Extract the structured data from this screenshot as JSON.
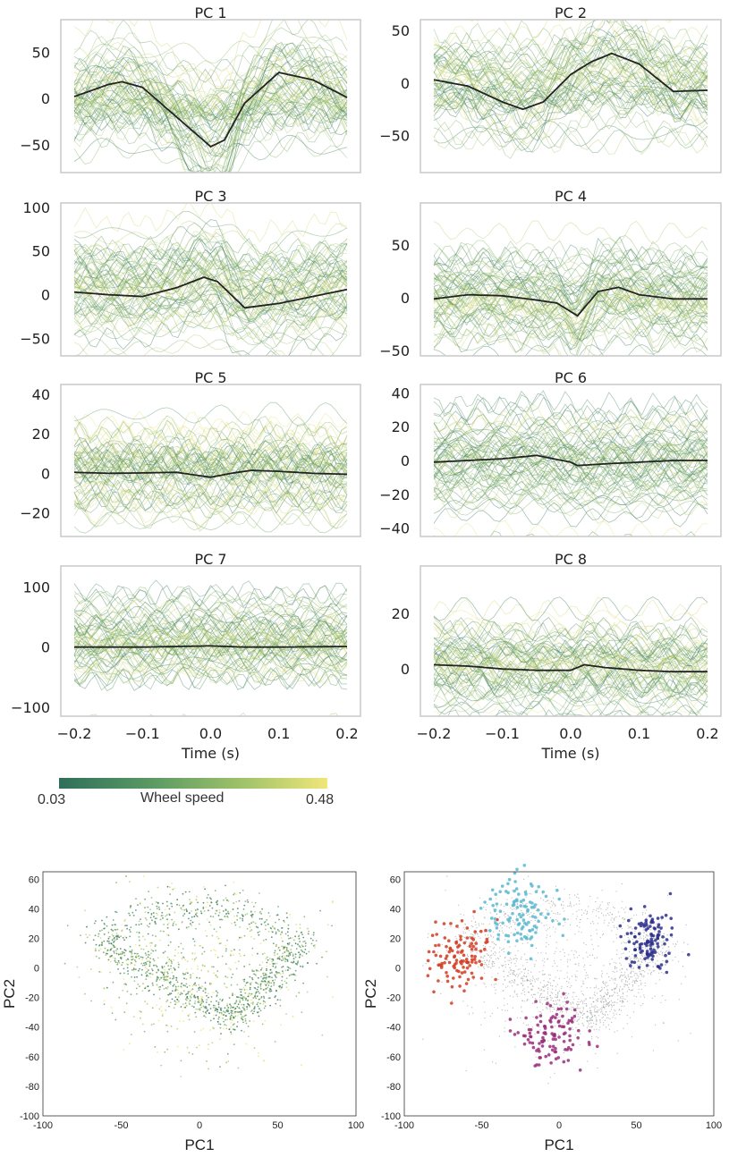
{
  "chart_data": [
    {
      "type": "line",
      "panel_group": "pc_traces",
      "x_range": [
        -0.2,
        0.2
      ],
      "xticks": [
        "-0.2",
        "-0.1",
        "0.0",
        "0.1",
        "0.2"
      ],
      "xlabel": "Time (s)",
      "colorbar": {
        "label": "Wheel speed",
        "min": "0.03",
        "max": "0.48",
        "colors": [
          "#2f6f5a",
          "#5b9a63",
          "#a3c46a",
          "#f0e67a"
        ]
      },
      "panels": [
        {
          "title": "PC 1",
          "ylim": [
            -80,
            85
          ],
          "yticks": [
            -50,
            0,
            50
          ],
          "mean": {
            "x": [
              -0.2,
              -0.15,
              -0.13,
              -0.1,
              -0.05,
              0.0,
              0.02,
              0.05,
              0.1,
              0.15,
              0.2
            ],
            "y": [
              2,
              15,
              18,
              12,
              -20,
              -52,
              -45,
              -5,
              28,
              20,
              1
            ]
          }
        },
        {
          "title": "PC 2",
          "ylim": [
            -85,
            60
          ],
          "yticks": [
            -50,
            0,
            50
          ],
          "mean": {
            "x": [
              -0.2,
              -0.15,
              -0.1,
              -0.07,
              -0.04,
              0.0,
              0.03,
              0.06,
              0.1,
              0.15,
              0.2
            ],
            "y": [
              3,
              -3,
              -18,
              -25,
              -18,
              8,
              20,
              28,
              18,
              -8,
              -7
            ]
          }
        },
        {
          "title": "PC 3",
          "ylim": [
            -70,
            105
          ],
          "yticks": [
            -50,
            0,
            50,
            100
          ],
          "mean": {
            "x": [
              -0.2,
              -0.15,
              -0.1,
              -0.05,
              -0.01,
              0.01,
              0.05,
              0.1,
              0.15,
              0.2
            ],
            "y": [
              3,
              0,
              -2,
              8,
              20,
              15,
              -15,
              -10,
              -2,
              6
            ]
          }
        },
        {
          "title": "PC 4",
          "ylim": [
            -55,
            90
          ],
          "yticks": [
            -50,
            0,
            50
          ],
          "mean": {
            "x": [
              -0.2,
              -0.15,
              -0.1,
              -0.05,
              -0.02,
              0.01,
              0.04,
              0.07,
              0.1,
              0.15,
              0.2
            ],
            "y": [
              -1,
              3,
              2,
              -2,
              -5,
              -17,
              6,
              10,
              3,
              -1,
              -1
            ]
          }
        },
        {
          "title": "PC 5",
          "ylim": [
            -32,
            45
          ],
          "yticks": [
            -20,
            0,
            20,
            40
          ],
          "mean": {
            "x": [
              -0.2,
              -0.15,
              -0.1,
              -0.05,
              0.0,
              0.03,
              0.06,
              0.1,
              0.15,
              0.2
            ],
            "y": [
              0.5,
              0,
              0.2,
              0.5,
              -2,
              0,
              1.5,
              1,
              0,
              -0.5
            ]
          }
        },
        {
          "title": "PC 6",
          "ylim": [
            -45,
            45
          ],
          "yticks": [
            -40,
            -20,
            0,
            20,
            40
          ],
          "mean": {
            "x": [
              -0.2,
              -0.15,
              -0.1,
              -0.05,
              0.0,
              0.01,
              0.05,
              0.1,
              0.15,
              0.2
            ],
            "y": [
              -1,
              0,
              1,
              3,
              -1,
              -3,
              -2,
              -1,
              0,
              0
            ]
          }
        },
        {
          "title": "PC 7",
          "ylim": [
            -115,
            135
          ],
          "yticks": [
            -100,
            0,
            100
          ],
          "mean": {
            "x": [
              -0.2,
              -0.1,
              0.0,
              0.05,
              0.1,
              0.2
            ],
            "y": [
              0,
              0,
              2,
              0,
              0,
              1
            ]
          }
        },
        {
          "title": "PC 8",
          "ylim": [
            -17,
            37
          ],
          "yticks": [
            0,
            20
          ],
          "mean": {
            "x": [
              -0.2,
              -0.15,
              -0.1,
              -0.05,
              0.0,
              0.02,
              0.05,
              0.1,
              0.15,
              0.2
            ],
            "y": [
              1.5,
              1,
              0,
              -0.5,
              -0.5,
              1.5,
              0.5,
              -0.5,
              -1,
              -1
            ]
          }
        }
      ]
    },
    {
      "type": "scatter",
      "panel_group": "pc_scatter",
      "xlabel": "PC1",
      "ylabel": "PC2",
      "xlim": [
        -100,
        100
      ],
      "ylim": [
        -100,
        65
      ],
      "xticks": [
        "-100",
        "-50",
        "0",
        "50",
        "100"
      ],
      "yticks": [
        "60",
        "40",
        "20",
        "0",
        "-20",
        "-40",
        "-60",
        "-80",
        "-100"
      ],
      "panels": [
        {
          "color_by": "Wheel speed",
          "colors": [
            "#2f6f5a",
            "#5b9a63",
            "#a3c46a",
            "#f0e67a"
          ]
        },
        {
          "base_color": "#9a9a9a",
          "clusters": [
            {
              "color": "#d23b20",
              "center": [
                -65,
                8
              ]
            },
            {
              "color": "#5bb8cf",
              "center": [
                -25,
                38
              ]
            },
            {
              "color": "#2a2f8c",
              "center": [
                58,
                20
              ]
            },
            {
              "color": "#9a2e7a",
              "center": [
                -5,
                -45
              ]
            }
          ]
        }
      ]
    }
  ]
}
